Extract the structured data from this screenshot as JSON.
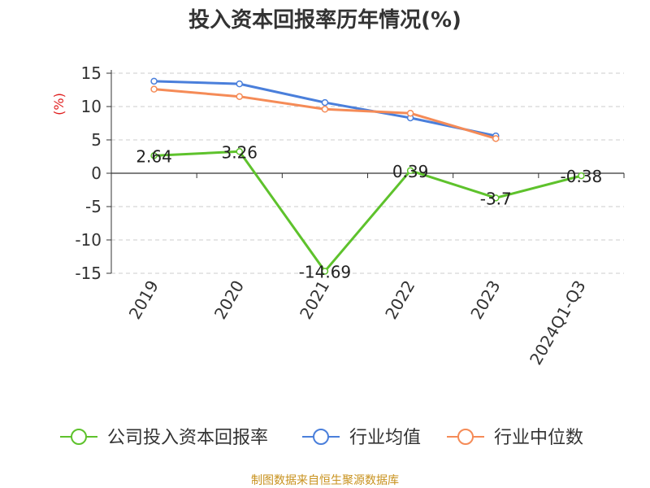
{
  "title": "投入资本回报率历年情况(%)",
  "source": "制图数据来自恒生聚源数据库",
  "y_unit": "(%)",
  "colors": {
    "company": "#5ec22c",
    "industry_avg": "#4a7fdb",
    "industry_median": "#f58b57",
    "axis": "#333333",
    "grid": "#cccccc",
    "unit": "#e02020"
  },
  "chart_data": {
    "type": "line",
    "categories": [
      "2019",
      "2020",
      "2021",
      "2022",
      "2023",
      "2024Q1-Q3"
    ],
    "ylim": [
      -15,
      15
    ],
    "yticks": [
      15,
      10,
      5,
      0,
      -5,
      -10,
      -15
    ],
    "grid": true,
    "legend_position": "bottom",
    "series": [
      {
        "name": "公司投入资本回报率",
        "key": "company",
        "values": [
          2.64,
          3.26,
          -14.69,
          0.39,
          -3.7,
          -0.38
        ],
        "labels": [
          "2.64",
          "3.26",
          "-14.69",
          "0.39",
          "-3.7",
          "-0.38"
        ]
      },
      {
        "name": "行业均值",
        "key": "industry_avg",
        "values": [
          13.8,
          13.4,
          10.6,
          8.3,
          5.6,
          null
        ]
      },
      {
        "name": "行业中位数",
        "key": "industry_median",
        "values": [
          12.6,
          11.5,
          9.6,
          9.0,
          5.2,
          null
        ]
      }
    ]
  }
}
